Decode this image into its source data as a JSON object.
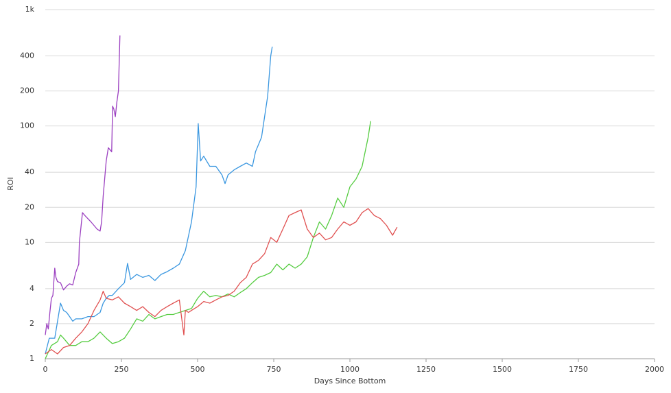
{
  "chart_data": {
    "type": "line",
    "x_label": "Days Since Bottom",
    "y_label": "ROI",
    "xlim": [
      0,
      2000
    ],
    "xticks": [
      0,
      250,
      500,
      750,
      1000,
      1250,
      1500,
      1750,
      2000
    ],
    "ylim": [
      1,
      1000
    ],
    "log_y": true,
    "grid": true,
    "yticks": [
      1,
      2,
      4,
      10,
      20,
      40,
      100,
      200,
      400,
      {
        "value": 1000,
        "label": "1k"
      }
    ],
    "series": [
      {
        "color": "#9b3fc0",
        "x": [
          0,
          5,
          10,
          15,
          20,
          25,
          31,
          35,
          40,
          50,
          60,
          70,
          80,
          90,
          100,
          110,
          112,
          122,
          130,
          150,
          170,
          180,
          185,
          190,
          200,
          207,
          218,
          221,
          225,
          230,
          235,
          240,
          245
        ],
        "values": [
          1.6,
          2.0,
          1.8,
          2.5,
          3.3,
          3.5,
          6.0,
          5.0,
          4.6,
          4.5,
          3.9,
          4.2,
          4.4,
          4.3,
          5.5,
          6.5,
          10,
          18,
          17,
          15,
          13,
          12.5,
          15,
          25,
          50,
          65,
          60,
          148,
          140,
          120,
          160,
          200,
          600
        ]
      },
      {
        "color": "#3a97e0",
        "x": [
          0,
          13,
          31,
          50,
          60,
          70,
          80,
          90,
          100,
          120,
          140,
          160,
          180,
          190,
          200,
          210,
          220,
          240,
          260,
          270,
          280,
          300,
          320,
          340,
          360,
          380,
          400,
          420,
          440,
          460,
          480,
          495,
          502,
          510,
          520,
          540,
          560,
          580,
          590,
          600,
          620,
          640,
          660,
          680,
          690,
          710,
          730,
          740,
          745
        ],
        "values": [
          1.1,
          1.5,
          1.5,
          3.0,
          2.6,
          2.5,
          2.3,
          2.1,
          2.2,
          2.2,
          2.3,
          2.3,
          2.5,
          3.0,
          3.3,
          3.5,
          3.5,
          4.0,
          4.5,
          6.6,
          4.8,
          5.3,
          5.0,
          5.2,
          4.7,
          5.3,
          5.6,
          6.0,
          6.5,
          8.5,
          15,
          30,
          105,
          50,
          55,
          45,
          45,
          38,
          32,
          38,
          42,
          45,
          48,
          45,
          60,
          80,
          180,
          400,
          480
        ]
      },
      {
        "color": "#55cc40",
        "x": [
          0,
          20,
          40,
          50,
          60,
          80,
          100,
          120,
          140,
          160,
          180,
          200,
          220,
          240,
          260,
          280,
          300,
          320,
          340,
          360,
          380,
          400,
          420,
          440,
          460,
          480,
          500,
          520,
          540,
          560,
          580,
          600,
          620,
          640,
          660,
          680,
          700,
          720,
          740,
          760,
          780,
          800,
          820,
          840,
          860,
          880,
          900,
          920,
          940,
          960,
          980,
          1000,
          1020,
          1040,
          1060,
          1068
        ],
        "values": [
          1.0,
          1.3,
          1.4,
          1.6,
          1.5,
          1.3,
          1.3,
          1.4,
          1.4,
          1.5,
          1.7,
          1.5,
          1.35,
          1.4,
          1.5,
          1.8,
          2.2,
          2.1,
          2.4,
          2.2,
          2.3,
          2.4,
          2.4,
          2.5,
          2.6,
          2.7,
          3.3,
          3.8,
          3.4,
          3.5,
          3.4,
          3.6,
          3.4,
          3.7,
          4.0,
          4.5,
          5.0,
          5.2,
          5.5,
          6.5,
          5.8,
          6.5,
          6.0,
          6.5,
          7.5,
          11,
          15,
          13,
          17,
          24,
          20,
          30,
          35,
          45,
          80,
          110
        ]
      },
      {
        "color": "#e05050",
        "x": [
          0,
          20,
          40,
          60,
          80,
          100,
          120,
          140,
          160,
          180,
          190,
          200,
          220,
          240,
          260,
          280,
          300,
          320,
          340,
          360,
          380,
          400,
          420,
          440,
          455,
          460,
          470,
          480,
          500,
          520,
          540,
          560,
          580,
          600,
          620,
          640,
          660,
          680,
          700,
          720,
          740,
          760,
          780,
          800,
          820,
          840,
          860,
          880,
          900,
          920,
          940,
          960,
          980,
          1000,
          1020,
          1040,
          1060,
          1080,
          1100,
          1120,
          1140,
          1155
        ],
        "values": [
          1.1,
          1.2,
          1.1,
          1.25,
          1.3,
          1.5,
          1.7,
          2.0,
          2.6,
          3.2,
          3.8,
          3.3,
          3.2,
          3.4,
          3.0,
          2.8,
          2.6,
          2.8,
          2.5,
          2.3,
          2.6,
          2.8,
          3.0,
          3.2,
          1.6,
          2.6,
          2.5,
          2.6,
          2.8,
          3.1,
          3.0,
          3.2,
          3.4,
          3.5,
          3.8,
          4.5,
          5,
          6.5,
          7,
          8,
          11,
          10,
          13,
          17,
          18,
          19,
          13,
          11,
          12,
          10.5,
          11,
          13,
          15,
          14,
          15,
          18,
          19.5,
          17,
          16,
          14,
          11.5,
          13.5
        ]
      }
    ]
  }
}
